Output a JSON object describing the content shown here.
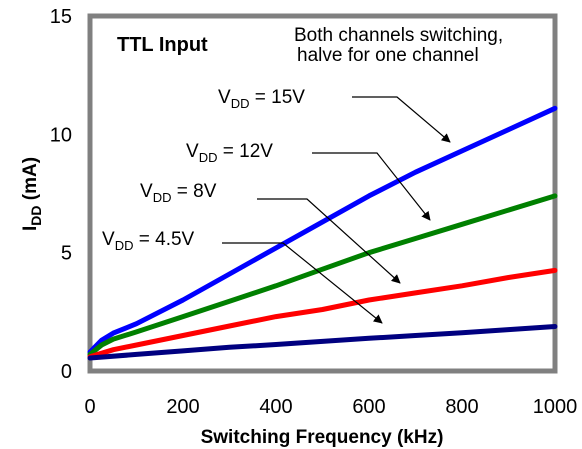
{
  "chart_data": {
    "type": "line",
    "title": "TTL Input",
    "note_line1": "Both channels switching,",
    "note_line2": "halve for one channel",
    "xlabel": "Switching Frequency (kHz)",
    "ylabel_main": "I",
    "ylabel_sub": "DD",
    "ylabel_unit": " (mA)",
    "xlim": [
      0,
      1000
    ],
    "ylim": [
      0,
      15
    ],
    "xticks": [
      0,
      200,
      400,
      600,
      800,
      1000
    ],
    "yticks": [
      0,
      5,
      10,
      15
    ],
    "grid": false,
    "series": [
      {
        "name_main": "V",
        "name_sub": "DD",
        "name_value": " = 15V",
        "color": "#0000ff",
        "x": [
          0,
          25,
          50,
          100,
          200,
          300,
          400,
          500,
          600,
          700,
          800,
          900,
          1000
        ],
        "y": [
          0.8,
          1.3,
          1.6,
          2.0,
          3.0,
          4.1,
          5.2,
          6.3,
          7.4,
          8.4,
          9.3,
          10.2,
          11.1
        ]
      },
      {
        "name_main": "V",
        "name_sub": "DD",
        "name_value": " = 12V",
        "color": "#008000",
        "x": [
          0,
          25,
          50,
          100,
          200,
          300,
          400,
          500,
          600,
          700,
          800,
          900,
          1000
        ],
        "y": [
          0.7,
          1.1,
          1.35,
          1.65,
          2.3,
          2.95,
          3.6,
          4.3,
          5.0,
          5.6,
          6.2,
          6.8,
          7.4
        ]
      },
      {
        "name_main": "V",
        "name_sub": "DD",
        "name_value": " = 8V",
        "color": "#ff0000",
        "x": [
          0,
          50,
          100,
          200,
          300,
          400,
          500,
          600,
          700,
          800,
          900,
          1000
        ],
        "y": [
          0.6,
          0.9,
          1.1,
          1.5,
          1.9,
          2.3,
          2.6,
          3.0,
          3.3,
          3.6,
          3.95,
          4.25
        ]
      },
      {
        "name_main": "V",
        "name_sub": "DD",
        "name_value": " = 4.5V",
        "color": "#000080",
        "x": [
          0,
          100,
          200,
          300,
          400,
          500,
          600,
          700,
          800,
          900,
          1000
        ],
        "y": [
          0.55,
          0.7,
          0.85,
          1.0,
          1.12,
          1.25,
          1.38,
          1.5,
          1.62,
          1.75,
          1.88
        ]
      }
    ]
  }
}
